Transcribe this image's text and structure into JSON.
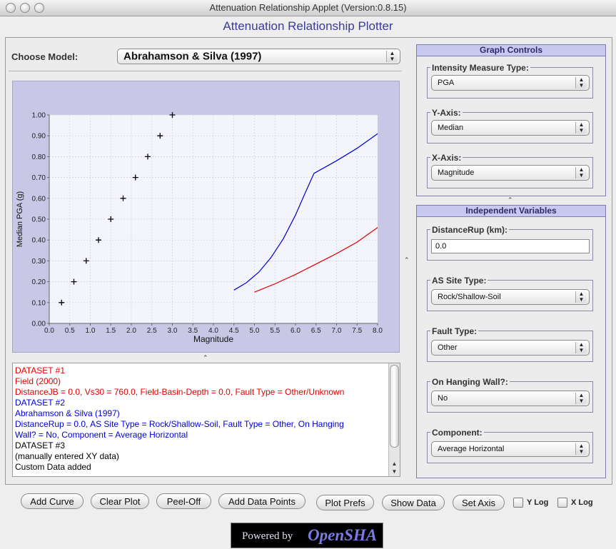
{
  "window": {
    "title": "Attenuation Relationship Applet (Version:0.8.15)"
  },
  "heading": "Attenuation Relationship Plotter",
  "model": {
    "label": "Choose Model:",
    "value": "Abrahamson & Silva (1997)"
  },
  "graph_controls": {
    "title": "Graph Controls",
    "imt": {
      "label": "Intensity Measure Type:",
      "value": "PGA"
    },
    "yaxis": {
      "label": "Y-Axis:",
      "value": "Median"
    },
    "xaxis": {
      "label": "X-Axis:",
      "value": "Magnitude"
    }
  },
  "independent": {
    "title": "Independent Variables",
    "distance": {
      "label": "DistanceRup (km):",
      "value": "0.0"
    },
    "site": {
      "label": "AS Site Type:",
      "value": "Rock/Shallow-Soil"
    },
    "fault": {
      "label": "Fault Type:",
      "value": "Other"
    },
    "hanging": {
      "label": "On Hanging Wall?:",
      "value": "No"
    },
    "component": {
      "label": "Component:",
      "value": "Average Horizontal"
    }
  },
  "handle_glyph": "⌃",
  "log": [
    {
      "text": "DATASET #1",
      "color": "#e00000"
    },
    {
      "text": "Field (2000)",
      "color": "#e00000"
    },
    {
      "text": "DistanceJB = 0.0, Vs30 = 760.0, Field-Basin-Depth = 0.0, Fault Type = Other/Unknown",
      "color": "#e00000"
    },
    {
      "text": "DATASET #2",
      "color": "#0000d8"
    },
    {
      "text": "Abrahamson & Silva (1997)",
      "color": "#0000d8"
    },
    {
      "text": "DistanceRup = 0.0, AS Site Type = Rock/Shallow-Soil, Fault Type = Other, On Hanging",
      "color": "#0000d8"
    },
    {
      "text": "Wall? = No, Component = Average Horizontal",
      "color": "#0000d8"
    },
    {
      "text": "DATASET #3",
      "color": "#000000"
    },
    {
      "text": "(manually entered XY data)",
      "color": "#000000"
    },
    {
      "text": "Custom Data added",
      "color": "#000000"
    }
  ],
  "buttons": {
    "add_curve": "Add Curve",
    "clear_plot": "Clear Plot",
    "peel_off": "Peel-Off",
    "add_points": "Add Data Points",
    "plot_prefs": "Plot Prefs",
    "show_data": "Show Data",
    "set_axis": "Set Axis",
    "ylog": "Y Log",
    "xlog": "X Log"
  },
  "logo": {
    "powered": "Powered by",
    "name": "OpenSHA"
  },
  "colors": {
    "dataset1": "#e00000",
    "dataset2": "#0000d8",
    "dataset3": "#000000",
    "plot_bg": "#f4f4fc",
    "chart_frame": "#c8c8e6"
  },
  "chart_data": {
    "type": "line",
    "xlabel": "Magnitude",
    "ylabel": "Median PGA (g)",
    "xlim": [
      0.0,
      8.0
    ],
    "ylim": [
      0.0,
      1.0
    ],
    "xticks": [
      "0.0",
      "0.5",
      "1.0",
      "1.5",
      "2.0",
      "2.5",
      "3.0",
      "3.5",
      "4.0",
      "4.5",
      "5.0",
      "5.5",
      "6.0",
      "6.5",
      "7.0",
      "7.5",
      "8.0"
    ],
    "yticks": [
      "0.00",
      "0.10",
      "0.20",
      "0.30",
      "0.40",
      "0.50",
      "0.60",
      "0.70",
      "0.80",
      "0.90",
      "1.00"
    ],
    "grid": true,
    "series": [
      {
        "color": "#e00000",
        "style": "line",
        "x": [
          5.0,
          5.5,
          6.0,
          6.5,
          7.0,
          7.5,
          8.0
        ],
        "y": [
          0.15,
          0.19,
          0.235,
          0.285,
          0.335,
          0.39,
          0.46
        ]
      },
      {
        "color": "#0000d8",
        "style": "line",
        "x": [
          4.5,
          4.8,
          5.1,
          5.4,
          5.7,
          6.0,
          6.2,
          6.45,
          7.0,
          7.5,
          8.0
        ],
        "y": [
          0.16,
          0.195,
          0.245,
          0.315,
          0.405,
          0.52,
          0.61,
          0.72,
          0.78,
          0.84,
          0.91
        ]
      },
      {
        "color": "#000000",
        "style": "plus",
        "x": [
          0.3,
          0.6,
          0.9,
          1.2,
          1.5,
          1.8,
          2.1,
          2.4,
          2.7,
          3.0
        ],
        "y": [
          0.1,
          0.2,
          0.3,
          0.4,
          0.5,
          0.6,
          0.7,
          0.8,
          0.9,
          1.0
        ]
      }
    ]
  }
}
